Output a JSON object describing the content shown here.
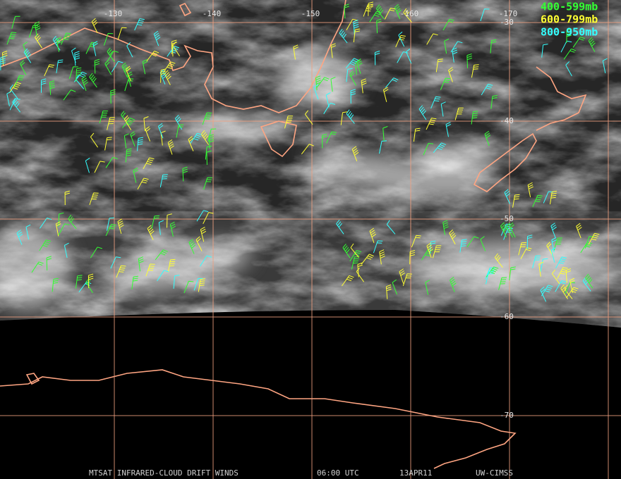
{
  "legend": [
    {
      "label": "400-599mb",
      "color": "#33ff33"
    },
    {
      "label": "600-799mb",
      "color": "#ffff33"
    },
    {
      "label": "800-950mb",
      "color": "#33ffff"
    }
  ],
  "longitude_labels": [
    -130,
    -140,
    -150,
    -160,
    -170
  ],
  "latitude_labels": [
    -30,
    -40,
    -50,
    -60,
    -70
  ],
  "footer": {
    "title": "MTSAT INFRARED-CLOUD DRIFT WINDS",
    "time": "06:00 UTC",
    "date": "13APR11",
    "source": "UW-CIMSS"
  }
}
